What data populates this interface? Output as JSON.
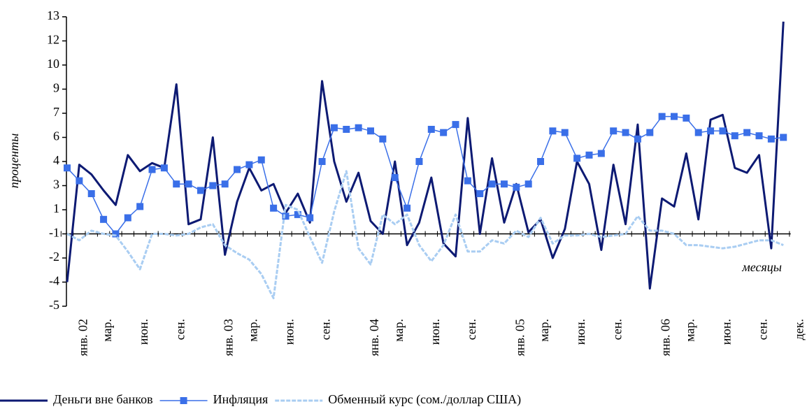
{
  "chart_data": {
    "type": "line",
    "ylabel": "проценты",
    "xlabel": "месяцы",
    "categories": [
      "янв. 02",
      null,
      "мар.",
      null,
      null,
      "июн.",
      null,
      null,
      "сен.",
      null,
      null,
      null,
      "янв. 03",
      null,
      "мар.",
      null,
      null,
      "июн.",
      null,
      null,
      "сен.",
      null,
      null,
      null,
      "янв. 04",
      null,
      "мар.",
      null,
      null,
      "июн.",
      null,
      null,
      "сен.",
      null,
      null,
      null,
      "янв. 05",
      null,
      "мар.",
      null,
      null,
      "июн.",
      null,
      null,
      "сен.",
      null,
      null,
      null,
      "янв. 06",
      null,
      "мар.",
      null,
      null,
      "июн.",
      null,
      null,
      "сен.",
      null,
      null,
      "дек."
    ],
    "series": [
      {
        "name": "Деньги вне банков",
        "color": "#0d1a73",
        "marker": false,
        "values": [
          -3.5,
          3.8,
          3.2,
          2.2,
          1.3,
          4.4,
          3.4,
          3.9,
          3.6,
          8.8,
          0.1,
          0.4,
          5.5,
          -1.8,
          1.5,
          3.6,
          2.2,
          2.6,
          0.8,
          2.0,
          0.2,
          9.0,
          4.0,
          1.5,
          3.3,
          0.3,
          -0.5,
          4.0,
          -1.2,
          0.2,
          3.0,
          -1.1,
          -1.9,
          6.7,
          -0.5,
          4.2,
          0.2,
          2.6,
          -0.4,
          0.4,
          -2.0,
          -0.2,
          4.0,
          2.6,
          -1.5,
          3.8,
          0.1,
          6.3,
          -3.9,
          1.7,
          1.2,
          4.5,
          0.4,
          6.6,
          6.9,
          3.6,
          3.3,
          4.4,
          -1.4,
          12.7
        ]
      },
      {
        "name": "Инфляция",
        "color": "#3a6fe8",
        "marker": true,
        "values": [
          3.6,
          2.8,
          2.0,
          0.4,
          -0.5,
          0.5,
          1.2,
          3.5,
          3.6,
          2.6,
          2.6,
          2.2,
          2.5,
          2.6,
          3.5,
          3.8,
          4.1,
          1.1,
          0.6,
          0.7,
          0.5,
          4.0,
          6.1,
          6.0,
          6.1,
          5.9,
          5.4,
          3.0,
          1.1,
          4.0,
          6.0,
          5.8,
          6.3,
          2.8,
          2.0,
          2.6,
          2.6,
          2.4,
          2.6,
          4.0,
          5.9,
          5.8,
          4.2,
          4.4,
          4.5,
          5.9,
          5.8,
          5.4,
          5.8,
          6.8,
          6.8,
          6.7,
          5.8,
          5.9,
          5.9,
          5.6,
          5.8,
          5.6,
          5.4,
          5.5
        ]
      },
      {
        "name": "Обменный курс (сом./доллар США)",
        "color": "#a9cdf2",
        "marker": false,
        "values": [
          -0.5,
          -0.9,
          -0.3,
          -0.5,
          -0.6,
          -1.6,
          -2.7,
          -0.5,
          -0.5,
          -0.6,
          -0.5,
          -0.1,
          0.1,
          -1.2,
          -1.7,
          -2.1,
          -3.0,
          -4.5,
          1.3,
          1.0,
          -0.7,
          -2.3,
          0.9,
          3.4,
          -1.4,
          -2.4,
          0.7,
          0.1,
          0.7,
          -1.2,
          -2.2,
          -1.2,
          0.7,
          -1.6,
          -1.6,
          -0.9,
          -1.1,
          -0.3,
          -0.7,
          0.5,
          -1.1,
          -0.6,
          -0.6,
          -0.5,
          -0.7,
          -0.6,
          -0.5,
          0.6,
          -0.3,
          -0.3,
          -0.5,
          -1.2,
          -1.2,
          -1.3,
          -1.4,
          -1.3,
          -1.1,
          -0.9,
          -0.9,
          -1.2
        ]
      }
    ],
    "ylim": [
      -5,
      13
    ],
    "yticks": [
      -5,
      {
        "value": -3.5,
        "label": "-4"
      },
      -2,
      {
        "value": -0.5,
        "label": "-1"
      },
      1,
      {
        "value": 2.5,
        "label": "3"
      },
      4,
      {
        "value": 5.5,
        "label": "6"
      },
      7,
      {
        "value": 8.5,
        "label": "9"
      },
      10,
      {
        "value": 11.5,
        "label": "12"
      },
      13
    ],
    "x_axis_crosses": -0.5,
    "legend": "bottom"
  }
}
